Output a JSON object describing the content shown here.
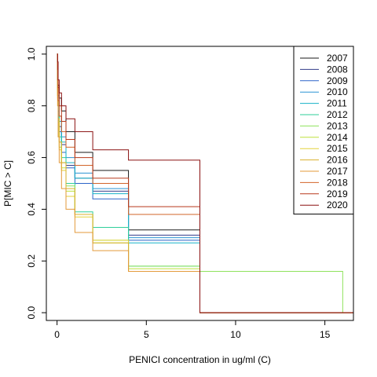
{
  "chart_data": {
    "type": "line",
    "xlabel": "PENICI concentration in ug/ml (C)",
    "ylabel": "P[MIC > C]",
    "xlim": [
      -0.6,
      16.6
    ],
    "ylim": [
      -0.03,
      1.03
    ],
    "xticks": [
      0,
      5,
      10,
      15
    ],
    "yticks": [
      0.0,
      0.2,
      0.4,
      0.6,
      0.8,
      1.0
    ],
    "legend_position": "top-right",
    "grid": false,
    "series": [
      {
        "name": "2007",
        "color": "#1a1a1a",
        "x": [
          0,
          0.03,
          0.06,
          0.12,
          0.25,
          0.5,
          1,
          2,
          4,
          8
        ],
        "y": [
          1.0,
          0.95,
          0.88,
          0.83,
          0.78,
          0.7,
          0.62,
          0.55,
          0.32,
          0.0
        ]
      },
      {
        "name": "2008",
        "color": "#333b8a",
        "x": [
          0,
          0.03,
          0.06,
          0.12,
          0.25,
          0.5,
          1,
          2,
          4,
          8
        ],
        "y": [
          1.0,
          0.9,
          0.8,
          0.72,
          0.65,
          0.57,
          0.52,
          0.47,
          0.3,
          0.0
        ]
      },
      {
        "name": "2009",
        "color": "#2b64c8",
        "x": [
          0,
          0.03,
          0.06,
          0.12,
          0.25,
          0.5,
          1,
          2,
          4,
          8
        ],
        "y": [
          1.0,
          0.88,
          0.78,
          0.7,
          0.62,
          0.56,
          0.5,
          0.44,
          0.28,
          0.0
        ]
      },
      {
        "name": "2010",
        "color": "#2a93d3",
        "x": [
          0,
          0.03,
          0.06,
          0.12,
          0.25,
          0.5,
          1,
          2,
          4,
          8
        ],
        "y": [
          1.0,
          0.92,
          0.84,
          0.76,
          0.68,
          0.6,
          0.54,
          0.48,
          0.29,
          0.0
        ]
      },
      {
        "name": "2011",
        "color": "#17b3c7",
        "x": [
          0,
          0.03,
          0.06,
          0.12,
          0.25,
          0.5,
          1,
          2,
          4,
          8
        ],
        "y": [
          1.0,
          0.9,
          0.82,
          0.74,
          0.66,
          0.58,
          0.52,
          0.46,
          0.27,
          0.0
        ]
      },
      {
        "name": "2012",
        "color": "#2fcf9a",
        "x": [
          0,
          0.03,
          0.06,
          0.12,
          0.25,
          0.5,
          1,
          2,
          4,
          8
        ],
        "y": [
          1.0,
          0.86,
          0.76,
          0.68,
          0.6,
          0.5,
          0.39,
          0.33,
          0.18,
          0.0
        ]
      },
      {
        "name": "2013",
        "color": "#8ee25c",
        "x": [
          0,
          0.03,
          0.06,
          0.12,
          0.25,
          0.5,
          1,
          2,
          4,
          8,
          16
        ],
        "y": [
          1.0,
          0.85,
          0.75,
          0.66,
          0.58,
          0.49,
          0.38,
          0.28,
          0.18,
          0.16,
          0.0
        ]
      },
      {
        "name": "2014",
        "color": "#bde13c",
        "x": [
          0,
          0.03,
          0.06,
          0.12,
          0.25,
          0.5,
          1,
          2,
          4,
          8
        ],
        "y": [
          1.0,
          0.84,
          0.74,
          0.64,
          0.56,
          0.47,
          0.38,
          0.27,
          0.17,
          0.0
        ]
      },
      {
        "name": "2015",
        "color": "#e3d23a",
        "x": [
          0,
          0.03,
          0.06,
          0.12,
          0.25,
          0.5,
          1,
          2,
          4,
          8
        ],
        "y": [
          1.0,
          0.83,
          0.73,
          0.63,
          0.55,
          0.45,
          0.37,
          0.28,
          0.16,
          0.0
        ]
      },
      {
        "name": "2016",
        "color": "#d9b02d",
        "x": [
          0,
          0.03,
          0.06,
          0.12,
          0.25,
          0.5,
          1,
          2,
          4,
          8
        ],
        "y": [
          1.0,
          0.84,
          0.75,
          0.66,
          0.58,
          0.48,
          0.38,
          0.27,
          0.16,
          0.0
        ]
      },
      {
        "name": "2017",
        "color": "#e39a3a",
        "x": [
          0,
          0.03,
          0.06,
          0.12,
          0.25,
          0.5,
          1,
          2,
          4,
          8
        ],
        "y": [
          1.0,
          0.8,
          0.68,
          0.58,
          0.48,
          0.4,
          0.31,
          0.24,
          0.16,
          0.0
        ]
      },
      {
        "name": "2018",
        "color": "#d2652a",
        "x": [
          0,
          0.03,
          0.06,
          0.12,
          0.25,
          0.5,
          1,
          2,
          4,
          8
        ],
        "y": [
          1.0,
          0.9,
          0.82,
          0.76,
          0.7,
          0.64,
          0.57,
          0.5,
          0.38,
          0.0
        ]
      },
      {
        "name": "2019",
        "color": "#b8391b",
        "x": [
          0,
          0.03,
          0.06,
          0.12,
          0.25,
          0.5,
          1,
          2,
          4,
          8
        ],
        "y": [
          1.0,
          0.94,
          0.87,
          0.8,
          0.74,
          0.67,
          0.6,
          0.52,
          0.41,
          0.0
        ]
      },
      {
        "name": "2020",
        "color": "#8a1010",
        "x": [
          0,
          0.03,
          0.06,
          0.12,
          0.25,
          0.5,
          1,
          2,
          4,
          8
        ],
        "y": [
          1.0,
          0.97,
          0.9,
          0.85,
          0.8,
          0.75,
          0.7,
          0.63,
          0.59,
          0.0
        ]
      }
    ]
  }
}
